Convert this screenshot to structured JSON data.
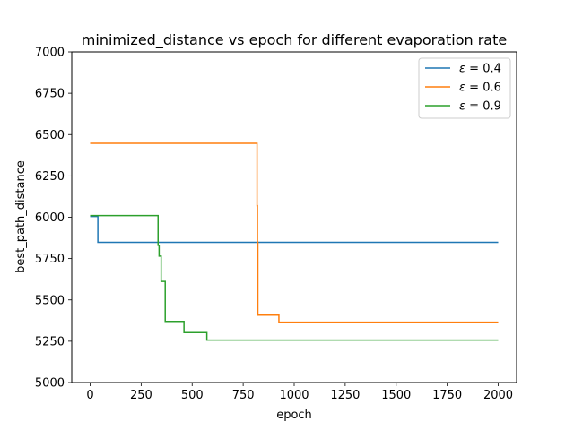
{
  "chart_data": {
    "type": "line",
    "title": "minimized_distance vs epoch for different evaporation rate",
    "xlabel": "epoch",
    "ylabel": "best_path_distance",
    "xlim": [
      -90,
      2090
    ],
    "ylim": [
      5000,
      7000
    ],
    "xticks": [
      0,
      250,
      500,
      750,
      1000,
      1250,
      1500,
      1750,
      2000
    ],
    "yticks": [
      5000,
      5250,
      5500,
      5750,
      6000,
      6250,
      6500,
      6750,
      7000
    ],
    "grid": false,
    "legend_position": "top-right",
    "series": [
      {
        "name": "ε = 0.4",
        "legend_symbol": "ε",
        "legend_value": "= 0.4",
        "color": "#1f77b4",
        "step": "post",
        "points": [
          [
            0,
            6005
          ],
          [
            38,
            6005
          ],
          [
            38,
            5848
          ],
          [
            2000,
            5848
          ]
        ]
      },
      {
        "name": "ε = 0.6",
        "legend_symbol": "ε",
        "legend_value": "= 0.6",
        "color": "#ff7f0e",
        "step": "post",
        "points": [
          [
            0,
            6447
          ],
          [
            818,
            6447
          ],
          [
            818,
            6070
          ],
          [
            820,
            6070
          ],
          [
            820,
            5848
          ],
          [
            822,
            5848
          ],
          [
            822,
            5408
          ],
          [
            925,
            5408
          ],
          [
            925,
            5365
          ],
          [
            2000,
            5365
          ]
        ]
      },
      {
        "name": "ε = 0.9",
        "legend_symbol": "ε",
        "legend_value": "= 0.9",
        "color": "#2ca02c",
        "step": "post",
        "points": [
          [
            0,
            6010
          ],
          [
            333,
            6010
          ],
          [
            333,
            5830
          ],
          [
            338,
            5830
          ],
          [
            338,
            5765
          ],
          [
            348,
            5765
          ],
          [
            348,
            5612
          ],
          [
            368,
            5612
          ],
          [
            368,
            5370
          ],
          [
            460,
            5370
          ],
          [
            460,
            5302
          ],
          [
            572,
            5302
          ],
          [
            572,
            5257
          ],
          [
            2000,
            5257
          ]
        ]
      }
    ]
  }
}
